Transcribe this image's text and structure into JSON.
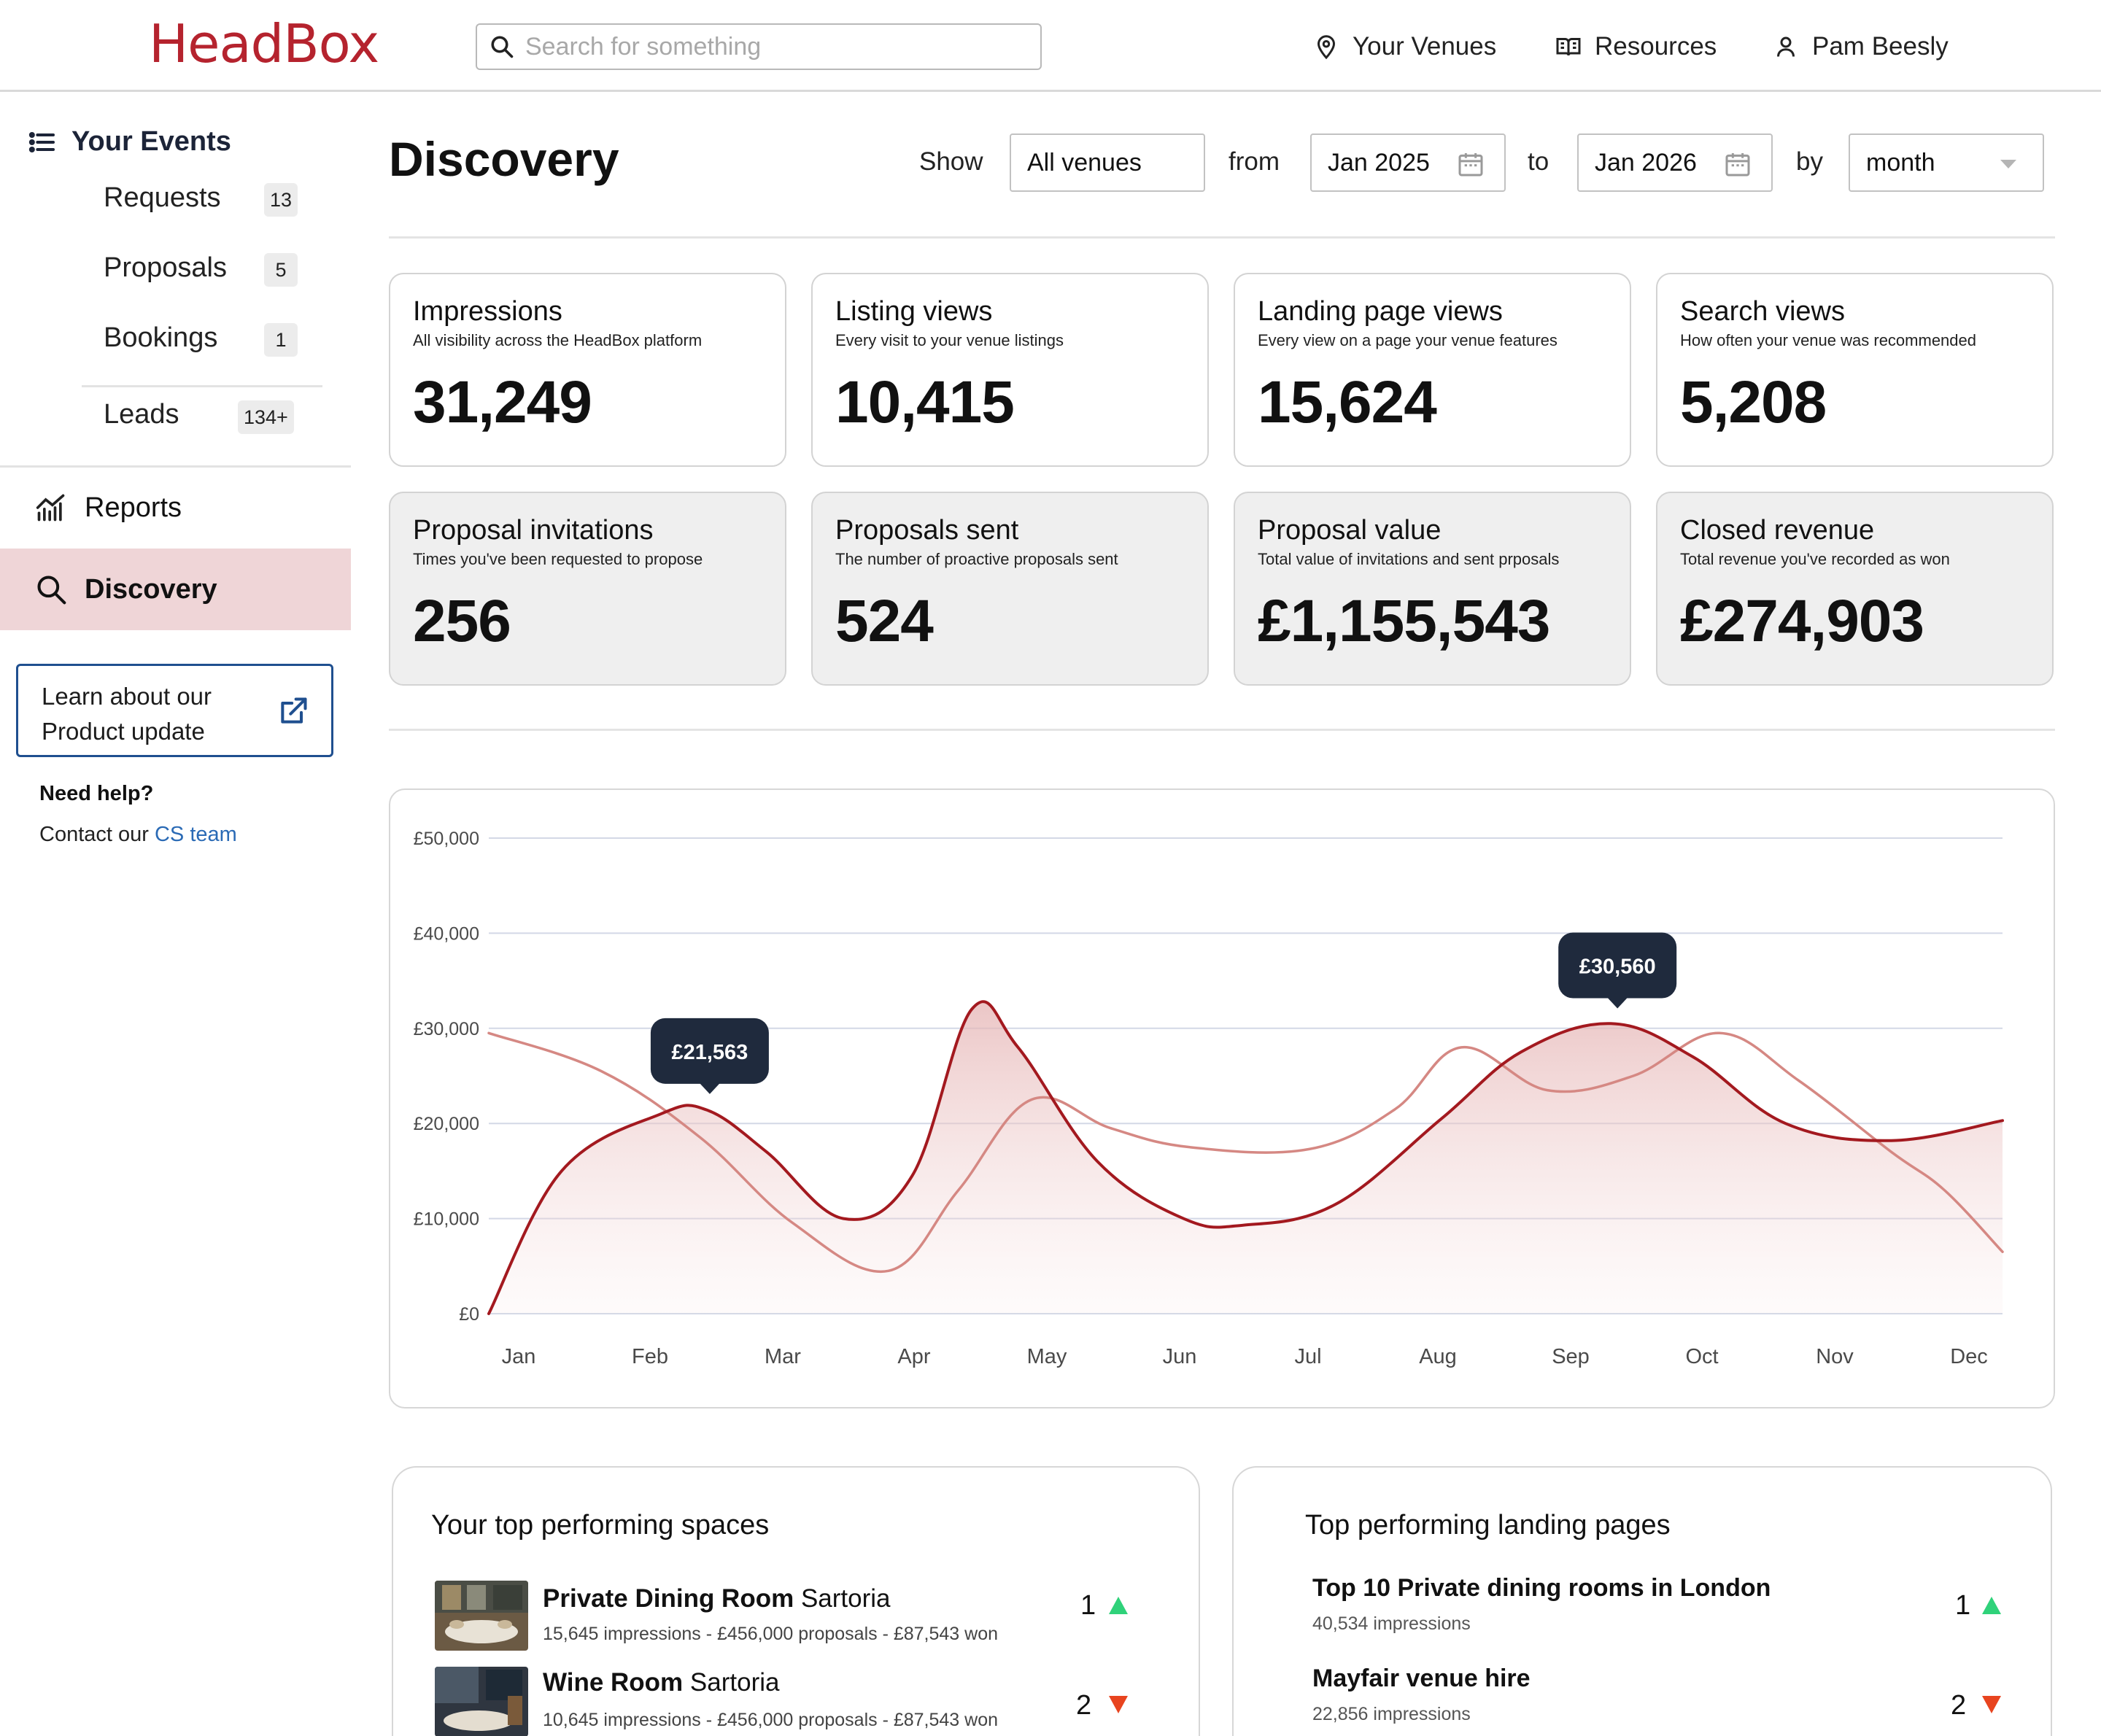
{
  "header": {
    "logo": "HeadBox",
    "search_placeholder": "Search for something",
    "nav": {
      "venues": "Your Venues",
      "resources": "Resources",
      "user": "Pam Beesly"
    }
  },
  "sidebar": {
    "section_title": "Your Events",
    "items": [
      {
        "label": "Requests",
        "count": "13"
      },
      {
        "label": "Proposals",
        "count": "5"
      },
      {
        "label": "Bookings",
        "count": "1"
      },
      {
        "label": "Leads",
        "count": "134+"
      }
    ],
    "reports": "Reports",
    "discovery": "Discovery",
    "learn_line1": "Learn about our",
    "learn_line2": "Product update",
    "help_title": "Need help?",
    "help_text": "Contact our ",
    "help_link": "CS team"
  },
  "page": {
    "title": "Discovery",
    "filters": {
      "show_label": "Show",
      "venue": "All venues",
      "from_label": "from",
      "from": "Jan 2025",
      "to_label": "to",
      "to": "Jan 2026",
      "by_label": "by",
      "by": "month"
    }
  },
  "metrics": [
    {
      "title": "Impressions",
      "subtitle": "All visibility across the HeadBox platform",
      "value": "31,249"
    },
    {
      "title": "Listing views",
      "subtitle": "Every visit to your venue listings",
      "value": "10,415"
    },
    {
      "title": "Landing page views",
      "subtitle": "Every view on a page your venue features",
      "value": "15,624"
    },
    {
      "title": "Search views",
      "subtitle": "How often your venue was recommended",
      "value": "5,208"
    },
    {
      "title": "Proposal invitations",
      "subtitle": "Times you've been requested to propose",
      "value": "256"
    },
    {
      "title": "Proposals sent",
      "subtitle": "The number of proactive proposals sent",
      "value": "524"
    },
    {
      "title": "Proposal value",
      "subtitle": "Total value of invitations and sent prposals",
      "value": "£1,155,543"
    },
    {
      "title": "Closed revenue",
      "subtitle": "Total revenue you've recorded as won",
      "value": "£274,903"
    }
  ],
  "chart_data": {
    "type": "line",
    "categories": [
      "Jan",
      "Feb",
      "Mar",
      "Apr",
      "May",
      "Jun",
      "Jul",
      "Aug",
      "Sep",
      "Oct",
      "Nov",
      "Dec"
    ],
    "y_ticks": [
      "£0",
      "£10,000",
      "£20,000",
      "£30,000",
      "£40,000",
      "£50,000"
    ],
    "ylim": [
      0,
      50000
    ],
    "grid": true,
    "series": [
      {
        "color": "#a3191f",
        "points": [
          [
            0.0,
            0
          ],
          [
            0.55,
            15000
          ],
          [
            1.3,
            21000
          ],
          [
            1.65,
            21400
          ],
          [
            2.1,
            17000
          ],
          [
            2.68,
            10000
          ],
          [
            3.2,
            14500
          ],
          [
            3.65,
            32000
          ],
          [
            4.0,
            28000
          ],
          [
            4.6,
            16000
          ],
          [
            5.25,
            10000
          ],
          [
            5.7,
            9300
          ],
          [
            6.4,
            11500
          ],
          [
            7.2,
            20500
          ],
          [
            7.8,
            27500
          ],
          [
            8.48,
            30500
          ],
          [
            9.1,
            27000
          ],
          [
            9.8,
            20000
          ],
          [
            10.6,
            18200
          ],
          [
            11.44,
            20300
          ]
        ]
      },
      {
        "color": "#d58883",
        "fill": true,
        "points": [
          [
            0.0,
            29500
          ],
          [
            0.85,
            25500
          ],
          [
            1.6,
            18500
          ],
          [
            2.3,
            9500
          ],
          [
            3.02,
            4500
          ],
          [
            3.55,
            13000
          ],
          [
            4.1,
            22500
          ],
          [
            4.7,
            19500
          ],
          [
            5.3,
            17500
          ],
          [
            6.2,
            17300
          ],
          [
            6.85,
            21500
          ],
          [
            7.35,
            28000
          ],
          [
            8.0,
            23500
          ],
          [
            8.65,
            25000
          ],
          [
            9.3,
            29500
          ],
          [
            9.9,
            24500
          ],
          [
            10.6,
            17000
          ],
          [
            11.0,
            13000
          ],
          [
            11.44,
            6500
          ]
        ]
      }
    ],
    "annotations": [
      {
        "label": "£21,563",
        "x": 1.67,
        "y": 21563
      },
      {
        "label": "£30,560",
        "x": 8.53,
        "y": 30560
      }
    ]
  },
  "top_spaces": {
    "title": "Your top performing spaces",
    "items": [
      {
        "name": "Private Dining Room",
        "venue": "Sartoria",
        "meta": "15,645 impressions - £456,000 proposals - £87,543 won",
        "rank": "1",
        "trend": "up"
      },
      {
        "name": "Wine Room",
        "venue": "Sartoria",
        "meta": "10,645 impressions - £456,000 proposals - £87,543 won",
        "rank": "2",
        "trend": "down"
      }
    ]
  },
  "top_pages": {
    "title": "Top performing landing pages",
    "items": [
      {
        "name": "Top 10 Private dining rooms in London",
        "meta": "40,534 impressions",
        "rank": "1",
        "trend": "up"
      },
      {
        "name": "Mayfair venue hire",
        "meta": "22,856 impressions",
        "rank": "2",
        "trend": "down"
      }
    ]
  },
  "colors": {
    "brand": "#b5232e",
    "sidebar_active": "#efd5d7",
    "tooltip": "#1f2a3d",
    "trend_up": "#2fd27a",
    "trend_down": "#e8441f"
  }
}
